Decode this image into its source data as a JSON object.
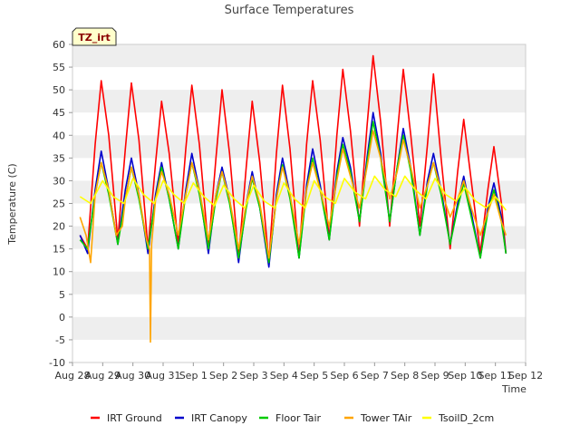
{
  "chart_data": {
    "type": "line",
    "title": "Surface Temperatures",
    "xlabel": "Time",
    "ylabel": "Temperature (C)",
    "ylim": [
      -10,
      60
    ],
    "yticks": [
      -10,
      -5,
      0,
      5,
      10,
      15,
      20,
      25,
      30,
      35,
      40,
      45,
      50,
      55,
      60
    ],
    "xlim": [
      0,
      15
    ],
    "xtick_labels": [
      "Aug 28",
      "Aug 29",
      "Aug 30",
      "Aug 31",
      "Sep 1",
      "Sep 2",
      "Sep 3",
      "Sep 4",
      "Sep 5",
      "Sep 6",
      "Sep 7",
      "Sep 8",
      "Sep 9",
      "Sep 10",
      "Sep 11",
      "Sep 12"
    ],
    "grid": "horizontal bands",
    "legend_position": "bottom",
    "annotation": "TZ_irt",
    "series": [
      {
        "name": "IRT Ground",
        "color": "#ff0000",
        "x": [
          0.25,
          0.5,
          0.75,
          0.95,
          1.2,
          1.5,
          1.75,
          1.95,
          2.2,
          2.5,
          2.75,
          2.95,
          3.2,
          3.5,
          3.75,
          3.95,
          4.2,
          4.5,
          4.75,
          4.95,
          5.2,
          5.5,
          5.75,
          5.95,
          6.2,
          6.5,
          6.75,
          6.95,
          7.2,
          7.5,
          7.75,
          7.95,
          8.2,
          8.5,
          8.75,
          8.95,
          9.2,
          9.5,
          9.75,
          9.95,
          10.2,
          10.5,
          10.75,
          10.95,
          11.2,
          11.5,
          11.75,
          11.95,
          12.2,
          12.5,
          12.75,
          12.95,
          13.2,
          13.5,
          13.75,
          13.95,
          14.2,
          14.35
        ],
        "y": [
          18,
          15,
          38,
          52,
          40,
          17,
          37,
          51.5,
          39,
          15,
          34,
          47.5,
          36,
          16,
          37,
          51,
          38,
          15,
          35,
          50,
          36,
          13,
          33,
          47.5,
          34,
          12,
          36,
          51,
          37,
          13,
          38,
          52,
          39,
          17,
          40,
          54.5,
          41,
          20,
          42,
          57.5,
          43,
          20,
          40,
          54.5,
          40,
          20,
          38,
          53.5,
          35,
          15,
          32,
          43.5,
          30,
          14,
          28,
          37.5,
          25,
          14
        ]
      },
      {
        "name": "IRT Canopy",
        "color": "#0000cc",
        "x": [
          0.25,
          0.5,
          0.75,
          0.95,
          1.2,
          1.5,
          1.75,
          1.95,
          2.2,
          2.5,
          2.75,
          2.95,
          3.2,
          3.5,
          3.75,
          3.95,
          4.2,
          4.5,
          4.75,
          4.95,
          5.2,
          5.5,
          5.75,
          5.95,
          6.2,
          6.5,
          6.75,
          6.95,
          7.2,
          7.5,
          7.75,
          7.95,
          8.2,
          8.5,
          8.75,
          8.95,
          9.2,
          9.5,
          9.75,
          9.95,
          10.2,
          10.5,
          10.75,
          10.95,
          11.2,
          11.5,
          11.75,
          11.95,
          12.2,
          12.5,
          12.75,
          12.95,
          13.2,
          13.5,
          13.75,
          13.95,
          14.2,
          14.35
        ],
        "y": [
          18,
          14,
          28,
          36.5,
          28,
          16,
          28,
          35,
          27,
          14,
          27,
          34,
          26,
          15,
          28,
          36,
          28,
          14,
          27,
          33,
          26,
          12,
          25,
          32,
          24,
          11,
          27,
          35,
          27,
          13,
          29,
          37,
          29,
          17,
          32,
          39.5,
          33,
          21,
          35,
          45,
          36,
          21,
          33,
          41.5,
          33,
          18,
          30,
          36,
          28,
          16,
          25,
          31,
          23,
          13,
          24,
          29.5,
          22,
          14
        ]
      },
      {
        "name": "Floor Tair",
        "color": "#00cc00",
        "x": [
          0.25,
          0.5,
          0.75,
          0.95,
          1.2,
          1.5,
          1.75,
          1.95,
          2.2,
          2.5,
          2.75,
          2.95,
          3.2,
          3.5,
          3.75,
          3.95,
          4.2,
          4.5,
          4.75,
          4.95,
          5.2,
          5.5,
          5.75,
          5.95,
          6.2,
          6.5,
          6.75,
          6.95,
          7.2,
          7.5,
          7.75,
          7.95,
          8.2,
          8.5,
          8.75,
          8.95,
          9.2,
          9.5,
          9.75,
          9.95,
          10.2,
          10.5,
          10.75,
          10.95,
          11.2,
          11.5,
          11.75,
          11.95,
          12.2,
          12.5,
          12.75,
          12.95,
          13.2,
          13.5,
          13.75,
          13.95,
          14.2,
          14.35
        ],
        "y": [
          17,
          15,
          27,
          34,
          27,
          16,
          26,
          33,
          26,
          15,
          26,
          33,
          26,
          15,
          27,
          34,
          27,
          15,
          26,
          32,
          25,
          13,
          24,
          30.5,
          24,
          12,
          26,
          33.5,
          26,
          13,
          28,
          35,
          28,
          17,
          31,
          38,
          32,
          21,
          34,
          43,
          35,
          21,
          33,
          40,
          32,
          18,
          29,
          34,
          27,
          16,
          24,
          29.5,
          22,
          13,
          23,
          28,
          21,
          14
        ]
      },
      {
        "name": "Tower TAir",
        "color": "#ffa500",
        "x": [
          0.25,
          0.45,
          0.6,
          0.75,
          0.95,
          1.2,
          1.45,
          1.65,
          1.75,
          1.95,
          2.2,
          2.45,
          2.55,
          2.58,
          2.62,
          2.75,
          2.95,
          3.2,
          3.5,
          3.75,
          3.95,
          4.2,
          4.5,
          4.75,
          4.95,
          5.2,
          5.5,
          5.75,
          5.95,
          6.2,
          6.5,
          6.75,
          6.95,
          7.2,
          7.5,
          7.75,
          7.95,
          8.2,
          8.5,
          8.75,
          8.95,
          9.2,
          9.5,
          9.75,
          9.95,
          10.2,
          10.5,
          10.75,
          10.95,
          11.2,
          11.5,
          11.75,
          11.95,
          12.2,
          12.5,
          12.75,
          12.95,
          13.2,
          13.5,
          13.75,
          13.95,
          14.2,
          14.35
        ],
        "y": [
          22,
          18,
          12,
          27,
          34,
          28,
          18,
          20,
          26,
          33,
          27,
          17,
          15,
          -5.5,
          16,
          26,
          32,
          27,
          18,
          27,
          34,
          28,
          17,
          27,
          32,
          26,
          15,
          25,
          31,
          25,
          13,
          26,
          33,
          27,
          16,
          28,
          34,
          28,
          20,
          30,
          37,
          31,
          24,
          33,
          41,
          35,
          26,
          32,
          39,
          33,
          24,
          29,
          34,
          28,
          22,
          26,
          30,
          24,
          18,
          23,
          27,
          21,
          18
        ]
      },
      {
        "name": "TsoilD_2cm",
        "color": "#ffff00",
        "x": [
          0.25,
          0.6,
          1.0,
          1.35,
          1.7,
          2.0,
          2.35,
          2.7,
          3.0,
          3.35,
          3.7,
          4.0,
          4.35,
          4.7,
          5.0,
          5.35,
          5.7,
          6.0,
          6.35,
          6.7,
          7.0,
          7.35,
          7.7,
          8.0,
          8.35,
          8.7,
          9.0,
          9.35,
          9.7,
          10.0,
          10.35,
          10.7,
          11.0,
          11.35,
          11.7,
          12.0,
          12.35,
          12.7,
          13.0,
          13.35,
          13.7,
          14.0,
          14.35
        ],
        "y": [
          26.5,
          25,
          30,
          26.5,
          25,
          30.5,
          27,
          25,
          30,
          27,
          25,
          29.5,
          26.5,
          24.5,
          29,
          26,
          24,
          29,
          25.5,
          24,
          29.5,
          26,
          24,
          30,
          26.5,
          25,
          30.5,
          27.5,
          26,
          31,
          28,
          26.5,
          31,
          28,
          26,
          30.5,
          27,
          25.5,
          28.5,
          25.5,
          24,
          26.5,
          23.5
        ]
      }
    ]
  }
}
